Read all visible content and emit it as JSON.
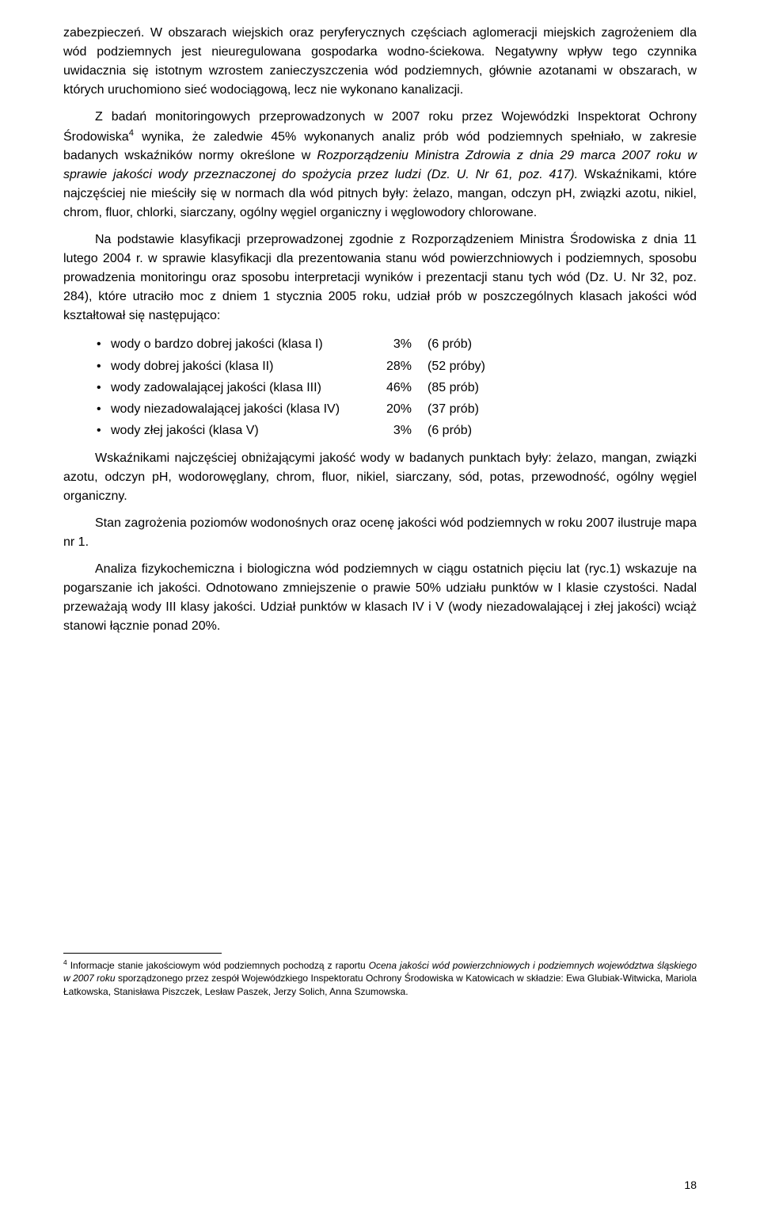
{
  "paragraphs": {
    "p1": "zabezpieczeń. W obszarach wiejskich oraz peryferycznych częściach aglomeracji miejskich zagrożeniem dla wód podziemnych jest nieuregulowana gospodarka wodno-ściekowa. Negatywny wpływ tego czynnika uwidacznia się istotnym wzrostem zanieczyszczenia wód podziemnych, głównie azotanami w obszarach, w których uruchomiono sieć wodociągową, lecz nie wykonano kanalizacji.",
    "p2_a": "Z badań monitoringowych przeprowadzonych w 2007 roku przez Wojewódzki Inspektorat Ochrony Środowiska",
    "p2_sup": "4",
    "p2_b": " wynika, że zaledwie 45% wykonanych analiz prób wód podziemnych spełniało, w zakresie badanych wskaźników normy określone w ",
    "p2_italic": "Rozporządzeniu Ministra Zdrowia z dnia 29 marca 2007 roku w sprawie jakości wody przeznaczonej do spożycia przez ludzi (Dz. U. Nr 61, poz. 417).",
    "p2_c": " Wskaźnikami, które najczęściej nie mieściły się w normach dla wód pitnych były: żelazo, mangan, odczyn pH, związki azotu, nikiel, chrom, fluor, chlorki, siarczany, ogólny węgiel organiczny i węglowodory chlorowane.",
    "p3": "Na podstawie klasyfikacji przeprowadzonej zgodnie z Rozporządzeniem Ministra Środowiska z dnia 11 lutego 2004 r. w sprawie klasyfikacji dla prezentowania stanu wód powierzchniowych i podziemnych, sposobu prowadzenia monitoringu oraz sposobu interpretacji wyników i prezentacji stanu tych wód (Dz. U. Nr 32, poz. 284), które utraciło moc z dniem 1 stycznia 2005 roku, udział prób w poszczególnych klasach jakości wód kształtował się następująco:",
    "p4": "Wskaźnikami najczęściej obniżającymi jakość wody w badanych punktach były: żelazo, mangan, związki azotu, odczyn pH, wodorowęglany, chrom, fluor, nikiel, siarczany, sód, potas, przewodność, ogólny węgiel organiczny.",
    "p5": "Stan zagrożenia poziomów wodonośnych oraz ocenę jakości wód podziemnych w roku 2007 ilustruje mapa nr 1.",
    "p6": "Analiza fizykochemiczna i biologiczna wód podziemnych w ciągu ostatnich pięciu lat (ryc.1) wskazuje na pogarszanie ich jakości. Odnotowano zmniejszenie o prawie 50% udziału punktów w I klasie czystości. Nadal przeważają wody III klasy jakości.  Udział punktów w klasach IV i V (wody niezadowalającej i złej jakości)  wciąż stanowi łącznie ponad 20%."
  },
  "bullets": [
    {
      "label": "wody o bardzo dobrej jakości (klasa I)",
      "pct": "3%",
      "count": "(6 prób)"
    },
    {
      "label": "wody dobrej jakości (klasa II)",
      "pct": "28%",
      "count": "(52 próby)"
    },
    {
      "label": "wody zadowalającej jakości (klasa III)",
      "pct": "46%",
      "count": "(85 prób)"
    },
    {
      "label": "wody niezadowalającej jakości (klasa IV)",
      "pct": "20%",
      "count": "(37 prób)"
    },
    {
      "label": "wody złej jakości (klasa V)",
      "pct": "3%",
      "count": "(6 prób)"
    }
  ],
  "footnote": {
    "sup": "4",
    "a": " Informacje stanie jakościowym wód podziemnych pochodzą z raportu ",
    "italic": "Ocena jakości wód powierzchniowych i podziemnych województwa śląskiego w 2007 roku",
    "b": " sporządzonego przez zespół Wojewódzkiego Inspektoratu Ochrony Środowiska w Katowicach w składzie: Ewa Glubiak-Witwicka, Mariola Łatkowska, Stanisława Piszczek, Lesław Paszek, Jerzy Solich, Anna Szumowska."
  },
  "page_number": "18"
}
